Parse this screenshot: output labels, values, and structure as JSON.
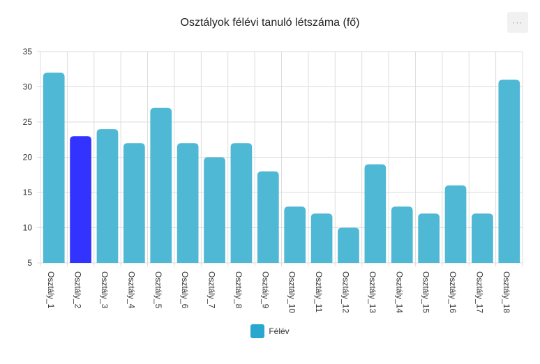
{
  "menu_icon": "ellipsis-icon",
  "menu_label": "···",
  "colors": {
    "bar": "#4fb8d4",
    "highlight": "#3333ff",
    "legend": "#2aa7cf",
    "grid": "#dddddd",
    "axis_text": "#333333"
  },
  "chart_data": {
    "type": "bar",
    "title": "Osztályok félévi tanuló létszáma (fő)",
    "categories": [
      "Osztály_1",
      "Osztály_2",
      "Osztály_3",
      "Osztály_4",
      "Osztály_5",
      "Osztály_6",
      "Osztály_7",
      "Osztály_8",
      "Osztály_9",
      "Osztály_10",
      "Osztály_11",
      "Osztály_12",
      "Osztály_13",
      "Osztály_14",
      "Osztály_15",
      "Osztály_16",
      "Osztály_17",
      "Osztály_18"
    ],
    "series": [
      {
        "name": "Félév",
        "values": [
          32,
          23,
          24,
          22,
          27,
          22,
          20,
          22,
          18,
          13,
          12,
          10,
          19,
          13,
          12,
          16,
          12,
          31
        ]
      }
    ],
    "highlighted_category": "Osztály_2",
    "ylim": [
      5,
      35
    ],
    "yticks": [
      5,
      10,
      15,
      20,
      25,
      30,
      35
    ],
    "grid": true,
    "legend_position": "bottom-center"
  }
}
